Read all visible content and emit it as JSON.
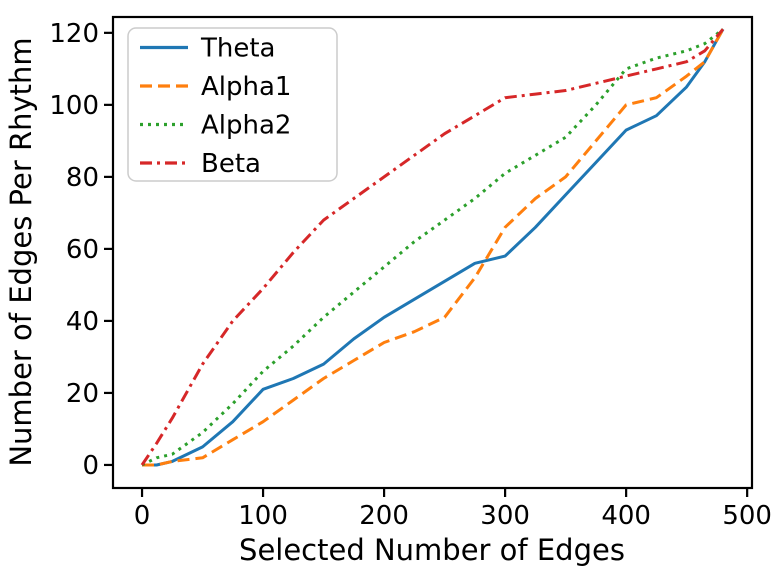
{
  "figure": {
    "background": "#ffffff",
    "axis_color": "#000000"
  },
  "chart_data": {
    "type": "line",
    "title": "",
    "xlabel": "Selected Number of Edges",
    "ylabel": "Number of Edges Per Rhythm",
    "xlim": [
      -24,
      504
    ],
    "ylim": [
      -6.4,
      124.4
    ],
    "x_ticks": [
      0,
      100,
      200,
      300,
      400,
      500
    ],
    "y_ticks": [
      0,
      20,
      40,
      60,
      80,
      100,
      120
    ],
    "grid": false,
    "legend_position": "upper left",
    "x": [
      0,
      12,
      25,
      50,
      75,
      100,
      125,
      150,
      175,
      200,
      225,
      250,
      275,
      300,
      325,
      350,
      375,
      400,
      425,
      450,
      465,
      480
    ],
    "series": [
      {
        "name": "Theta",
        "color": "#1f77b4",
        "linestyle": "solid",
        "values": [
          0,
          0,
          1,
          5,
          12,
          21,
          24,
          28,
          35,
          41,
          46,
          51,
          56,
          58,
          66,
          75,
          84,
          93,
          97,
          105,
          112,
          121
        ]
      },
      {
        "name": "Alpha1",
        "color": "#ff7f0e",
        "linestyle": "dashed",
        "values": [
          0,
          0,
          1,
          2,
          7,
          12,
          18,
          24,
          29,
          34,
          37,
          41,
          52,
          66,
          74,
          80,
          90,
          100,
          102,
          108,
          112,
          121
        ]
      },
      {
        "name": "Alpha2",
        "color": "#2ca02c",
        "linestyle": "dotted",
        "values": [
          0,
          2,
          3,
          9,
          17,
          26,
          33,
          41,
          48,
          55,
          62,
          68,
          74,
          81,
          86,
          91,
          100,
          110,
          113,
          115,
          117,
          121
        ]
      },
      {
        "name": "Beta",
        "color": "#d62728",
        "linestyle": "dashdot",
        "values": [
          0,
          6,
          13,
          28,
          40,
          49,
          59,
          68,
          74,
          80,
          86,
          92,
          97,
          102,
          103,
          104,
          106,
          108,
          110,
          112,
          115,
          121
        ]
      }
    ]
  }
}
